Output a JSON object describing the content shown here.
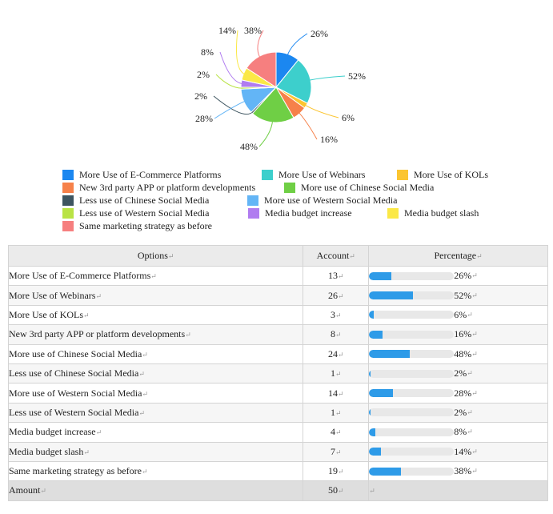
{
  "chart_data": {
    "type": "pie",
    "slice_labels": [
      "26%",
      "52%",
      "6%",
      "16%",
      "48%",
      "2%",
      "28%",
      "2%",
      "8%",
      "14%",
      "38%"
    ],
    "series": [
      {
        "name": "More Use of E-Commerce Platforms",
        "value": 13,
        "color": "#1b87f0"
      },
      {
        "name": "More Use of Webinars",
        "value": 26,
        "color": "#3dcfcc"
      },
      {
        "name": "More Use of KOLs",
        "value": 3,
        "color": "#fbc531"
      },
      {
        "name": "New 3rd party APP or platform developments",
        "value": 8,
        "color": "#f6814a"
      },
      {
        "name": "More use of Chinese Social Media",
        "value": 24,
        "color": "#6fcf45"
      },
      {
        "name": "Less use of Chinese Social Media",
        "value": 1,
        "color": "#3e5560"
      },
      {
        "name": "More use of Western Social Media",
        "value": 14,
        "color": "#63b5f6"
      },
      {
        "name": "Less use of Western Social Media",
        "value": 1,
        "color": "#b9e345"
      },
      {
        "name": "Media budget increase",
        "value": 4,
        "color": "#b07cf0"
      },
      {
        "name": "Media budget slash",
        "value": 7,
        "color": "#fbe846"
      },
      {
        "name": "Same marketing strategy as before",
        "value": 19,
        "color": "#f67f7f"
      }
    ]
  },
  "table": {
    "headers": [
      "Options",
      "Account",
      "Percentage"
    ],
    "rows": [
      {
        "option": "More Use of E-Commerce Platforms",
        "account": "13",
        "percent": "26%",
        "fraction": 0.26
      },
      {
        "option": "More Use of Webinars",
        "account": "26",
        "percent": "52%",
        "fraction": 0.52
      },
      {
        "option": "More Use of KOLs",
        "account": "3",
        "percent": "6%",
        "fraction": 0.06
      },
      {
        "option": "New 3rd party APP or platform developments",
        "account": "8",
        "percent": "16%",
        "fraction": 0.16
      },
      {
        "option": "More use of Chinese Social Media",
        "account": "24",
        "percent": "48%",
        "fraction": 0.48
      },
      {
        "option": "Less use of Chinese Social Media",
        "account": "1",
        "percent": "2%",
        "fraction": 0.02
      },
      {
        "option": "More use of Western Social Media",
        "account": "14",
        "percent": "28%",
        "fraction": 0.28
      },
      {
        "option": "Less use of Western Social Media",
        "account": "1",
        "percent": "2%",
        "fraction": 0.02
      },
      {
        "option": "Media budget increase",
        "account": "4",
        "percent": "8%",
        "fraction": 0.08
      },
      {
        "option": "Media budget slash",
        "account": "7",
        "percent": "14%",
        "fraction": 0.14
      },
      {
        "option": "Same marketing strategy as before",
        "account": "19",
        "percent": "38%",
        "fraction": 0.38
      }
    ],
    "total": {
      "label": "Amount",
      "account": "50"
    },
    "bar_color": "#2e9be8"
  }
}
